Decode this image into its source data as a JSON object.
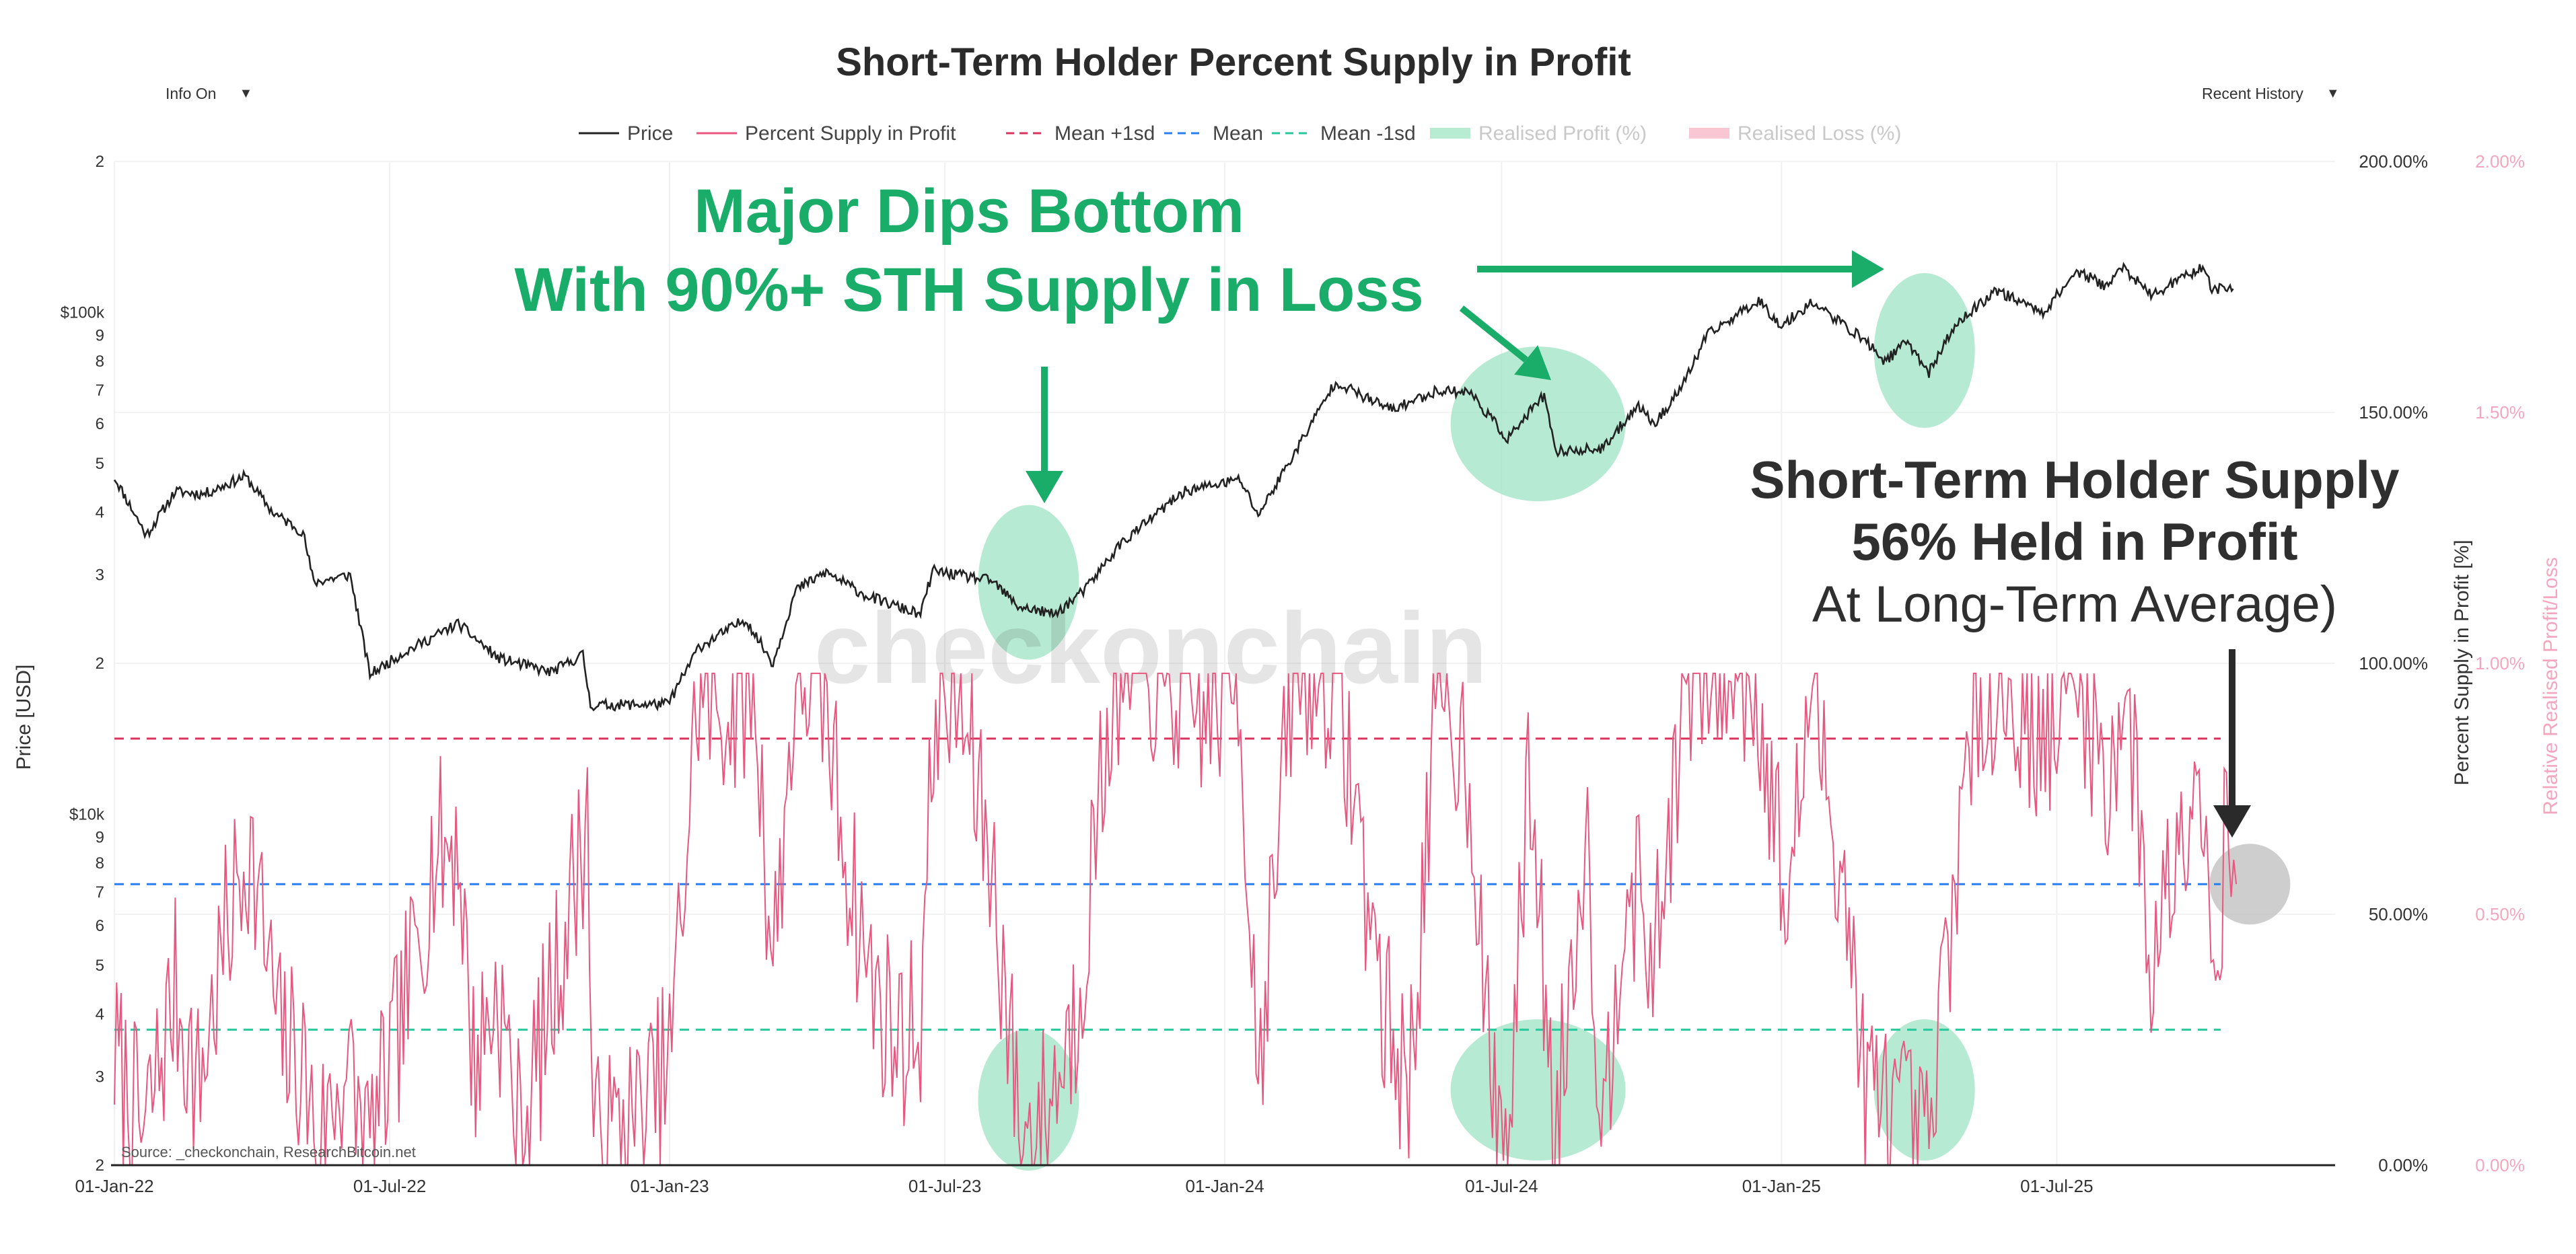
{
  "controls": {
    "info_label": "Info On",
    "history_label": "Recent History",
    "caret": "▼"
  },
  "chart_data": {
    "type": "line",
    "title": "Short-Term Holder Percent Supply in Profit",
    "legend": [
      {
        "name": "Price",
        "color": "#222222",
        "style": "solid"
      },
      {
        "name": "Percent Supply in Profit",
        "color": "#e8577f",
        "style": "solid"
      },
      {
        "name": "Mean +1sd",
        "color": "#d9345e",
        "style": "dashed"
      },
      {
        "name": "Mean",
        "color": "#2a7ff0",
        "style": "dashed"
      },
      {
        "name": "Mean -1sd",
        "color": "#26c79a",
        "style": "dashed"
      },
      {
        "name": "Realised Profit (%)",
        "color": "#b7ecd3",
        "style": "band"
      },
      {
        "name": "Realised Loss (%)",
        "color": "#f9c6d4",
        "style": "band"
      }
    ],
    "x_ticks": [
      "01-Jan-22",
      "01-Jul-22",
      "01-Jan-23",
      "01-Jul-23",
      "01-Jan-24",
      "01-Jul-24",
      "01-Jan-25",
      "01-Jul-25"
    ],
    "x_range": [
      "2022-01-01",
      "2025-12-31"
    ],
    "y_left": {
      "label": "Price [USD]",
      "scale": "log",
      "range": [
        2000,
        200000
      ],
      "ticks": [
        {
          "v": 2000,
          "t": "2"
        },
        {
          "v": 3000,
          "t": "3"
        },
        {
          "v": 4000,
          "t": "4"
        },
        {
          "v": 5000,
          "t": "5"
        },
        {
          "v": 6000,
          "t": "6"
        },
        {
          "v": 7000,
          "t": "7"
        },
        {
          "v": 8000,
          "t": "8"
        },
        {
          "v": 9000,
          "t": "9"
        },
        {
          "v": 10000,
          "t": "$10k"
        },
        {
          "v": 20000,
          "t": "2"
        },
        {
          "v": 30000,
          "t": "3"
        },
        {
          "v": 40000,
          "t": "4"
        },
        {
          "v": 50000,
          "t": "5"
        },
        {
          "v": 60000,
          "t": "6"
        },
        {
          "v": 70000,
          "t": "7"
        },
        {
          "v": 80000,
          "t": "8"
        },
        {
          "v": 90000,
          "t": "9"
        },
        {
          "v": 100000,
          "t": "$100k"
        },
        {
          "v": 200000,
          "t": "2"
        }
      ]
    },
    "y_right": {
      "label": "Percent Supply in Profit [%]",
      "range": [
        0,
        200
      ],
      "ticks": [
        {
          "v": 0,
          "t": "0.00%"
        },
        {
          "v": 50,
          "t": "50.00%"
        },
        {
          "v": 100,
          "t": "100.00%"
        },
        {
          "v": 150,
          "t": "150.00%"
        },
        {
          "v": 200,
          "t": "200.00%"
        }
      ]
    },
    "y_right2": {
      "label": "Relative Realised Profit/Loss",
      "range": [
        0,
        2
      ],
      "ticks": [
        {
          "v": 0,
          "t": "0.00%"
        },
        {
          "v": 0.5,
          "t": "0.50%"
        },
        {
          "v": 1,
          "t": "1.00%"
        },
        {
          "v": 1.5,
          "t": "1.50%"
        },
        {
          "v": 2,
          "t": "2.00%"
        }
      ]
    },
    "reference_lines": {
      "mean_plus_1sd": 85,
      "mean": 56,
      "mean_minus_1sd": 27
    },
    "price_anchors": [
      [
        "2022-01-01",
        47000
      ],
      [
        "2022-01-22",
        36000
      ],
      [
        "2022-02-10",
        44000
      ],
      [
        "2022-03-01",
        43500
      ],
      [
        "2022-03-28",
        47200
      ],
      [
        "2022-04-15",
        40000
      ],
      [
        "2022-05-05",
        36500
      ],
      [
        "2022-05-12",
        29000
      ],
      [
        "2022-06-05",
        30000
      ],
      [
        "2022-06-18",
        19000
      ],
      [
        "2022-07-10",
        21000
      ],
      [
        "2022-08-15",
        24000
      ],
      [
        "2022-09-10",
        20500
      ],
      [
        "2022-10-15",
        19200
      ],
      [
        "2022-11-05",
        20800
      ],
      [
        "2022-11-10",
        16500
      ],
      [
        "2022-12-31",
        16600
      ],
      [
        "2023-01-20",
        21500
      ],
      [
        "2023-02-20",
        24500
      ],
      [
        "2023-03-10",
        20000
      ],
      [
        "2023-03-25",
        28000
      ],
      [
        "2023-04-14",
        30400
      ],
      [
        "2023-05-10",
        27300
      ],
      [
        "2023-06-15",
        25000
      ],
      [
        "2023-06-23",
        30600
      ],
      [
        "2023-08-01",
        29200
      ],
      [
        "2023-08-18",
        26000
      ],
      [
        "2023-09-11",
        25000
      ],
      [
        "2023-10-01",
        28000
      ],
      [
        "2023-10-24",
        34500
      ],
      [
        "2023-12-05",
        44000
      ],
      [
        "2024-01-11",
        46500
      ],
      [
        "2024-01-23",
        39500
      ],
      [
        "2024-02-15",
        52000
      ],
      [
        "2024-03-14",
        73000
      ],
      [
        "2024-04-01",
        68000
      ],
      [
        "2024-04-20",
        64000
      ],
      [
        "2024-05-20",
        70000
      ],
      [
        "2024-06-10",
        69500
      ],
      [
        "2024-07-05",
        56000
      ],
      [
        "2024-07-29",
        68500
      ],
      [
        "2024-08-05",
        53000
      ],
      [
        "2024-09-06",
        53500
      ],
      [
        "2024-09-28",
        65500
      ],
      [
        "2024-10-10",
        60000
      ],
      [
        "2024-10-29",
        72500
      ],
      [
        "2024-11-13",
        90000
      ],
      [
        "2024-12-17",
        106000
      ],
      [
        "2025-01-01",
        94000
      ],
      [
        "2025-01-21",
        105000
      ],
      [
        "2025-02-25",
        88000
      ],
      [
        "2025-03-10",
        80000
      ],
      [
        "2025-03-25",
        87500
      ],
      [
        "2025-04-08",
        76000
      ],
      [
        "2025-04-25",
        94000
      ],
      [
        "2025-05-22",
        111000
      ],
      [
        "2025-06-22",
        100000
      ],
      [
        "2025-07-14",
        121000
      ],
      [
        "2025-08-02",
        113000
      ],
      [
        "2025-08-14",
        123000
      ],
      [
        "2025-09-01",
        108000
      ],
      [
        "2025-10-06",
        124000
      ],
      [
        "2025-10-10",
        112000
      ],
      [
        "2025-10-25",
        111500
      ]
    ],
    "supply_profit_anchors": [
      [
        "2022-01-01",
        22
      ],
      [
        "2022-01-20",
        5
      ],
      [
        "2022-02-10",
        35
      ],
      [
        "2022-02-25",
        15
      ],
      [
        "2022-03-15",
        45
      ],
      [
        "2022-03-30",
        65
      ],
      [
        "2022-04-20",
        25
      ],
      [
        "2022-05-05",
        20
      ],
      [
        "2022-05-15",
        3
      ],
      [
        "2022-06-01",
        20
      ],
      [
        "2022-06-18",
        3
      ],
      [
        "2022-07-10",
        30
      ],
      [
        "2022-07-30",
        62
      ],
      [
        "2022-08-15",
        65
      ],
      [
        "2022-08-25",
        20
      ],
      [
        "2022-09-10",
        35
      ],
      [
        "2022-09-25",
        5
      ],
      [
        "2022-10-20",
        40
      ],
      [
        "2022-11-08",
        70
      ],
      [
        "2022-11-12",
        3
      ],
      [
        "2022-12-15",
        10
      ],
      [
        "2023-01-01",
        20
      ],
      [
        "2023-01-20",
        95
      ],
      [
        "2023-02-10",
        90
      ],
      [
        "2023-02-25",
        98
      ],
      [
        "2023-03-10",
        40
      ],
      [
        "2023-03-25",
        98
      ],
      [
        "2023-04-10",
        97
      ],
      [
        "2023-05-01",
        55
      ],
      [
        "2023-05-15",
        35
      ],
      [
        "2023-06-01",
        25
      ],
      [
        "2023-06-15",
        30
      ],
      [
        "2023-06-25",
        95
      ],
      [
        "2023-07-10",
        92
      ],
      [
        "2023-08-01",
        60
      ],
      [
        "2023-08-20",
        5
      ],
      [
        "2023-09-05",
        10
      ],
      [
        "2023-09-25",
        30
      ],
      [
        "2023-10-20",
        98
      ],
      [
        "2023-11-15",
        98
      ],
      [
        "2023-12-15",
        90
      ],
      [
        "2024-01-10",
        97
      ],
      [
        "2024-01-23",
        20
      ],
      [
        "2024-02-15",
        98
      ],
      [
        "2024-03-15",
        98
      ],
      [
        "2024-04-01",
        60
      ],
      [
        "2024-04-15",
        30
      ],
      [
        "2024-05-01",
        15
      ],
      [
        "2024-05-20",
        95
      ],
      [
        "2024-06-10",
        80
      ],
      [
        "2024-06-25",
        10
      ],
      [
        "2024-07-05",
        5
      ],
      [
        "2024-07-20",
        80
      ],
      [
        "2024-08-05",
        3
      ],
      [
        "2024-08-25",
        70
      ],
      [
        "2024-09-06",
        5
      ],
      [
        "2024-09-20",
        60
      ],
      [
        "2024-10-10",
        40
      ],
      [
        "2024-10-29",
        95
      ],
      [
        "2024-11-20",
        98
      ],
      [
        "2024-12-15",
        98
      ],
      [
        "2025-01-05",
        50
      ],
      [
        "2025-01-20",
        95
      ],
      [
        "2025-02-10",
        60
      ],
      [
        "2025-02-25",
        15
      ],
      [
        "2025-03-15",
        10
      ],
      [
        "2025-04-08",
        2
      ],
      [
        "2025-04-25",
        60
      ],
      [
        "2025-05-15",
        98
      ],
      [
        "2025-06-10",
        90
      ],
      [
        "2025-07-01",
        85
      ],
      [
        "2025-07-15",
        98
      ],
      [
        "2025-08-05",
        75
      ],
      [
        "2025-08-15",
        98
      ],
      [
        "2025-09-01",
        40
      ],
      [
        "2025-09-15",
        60
      ],
      [
        "2025-10-01",
        85
      ],
      [
        "2025-10-12",
        42
      ],
      [
        "2025-10-22",
        70
      ],
      [
        "2025-10-27",
        56
      ]
    ],
    "highlight_zones": [
      {
        "series": "price",
        "date": "2023-08-25",
        "value": 29000
      },
      {
        "series": "price",
        "date": "2024-07-25",
        "value": 60000
      },
      {
        "series": "price",
        "date": "2025-04-05",
        "value": 84000
      },
      {
        "series": "supply",
        "date": "2023-08-25",
        "value": 13
      },
      {
        "series": "supply",
        "date": "2024-07-25",
        "value": 15
      },
      {
        "series": "supply",
        "date": "2025-04-05",
        "value": 15
      },
      {
        "series": "supply",
        "date": "2025-11-05",
        "value": 56
      }
    ],
    "annotations": {
      "headline_1": "Major Dips Bottom",
      "headline_2": "With 90%+ STH Supply in Loss",
      "callout_1": "Short-Term Holder Supply",
      "callout_2": "56% Held in Profit",
      "callout_3": "At Long-Term Average)"
    },
    "watermark": "checkonchain",
    "source": "Source: _checkonchain, ResearchBitcoin.net"
  }
}
